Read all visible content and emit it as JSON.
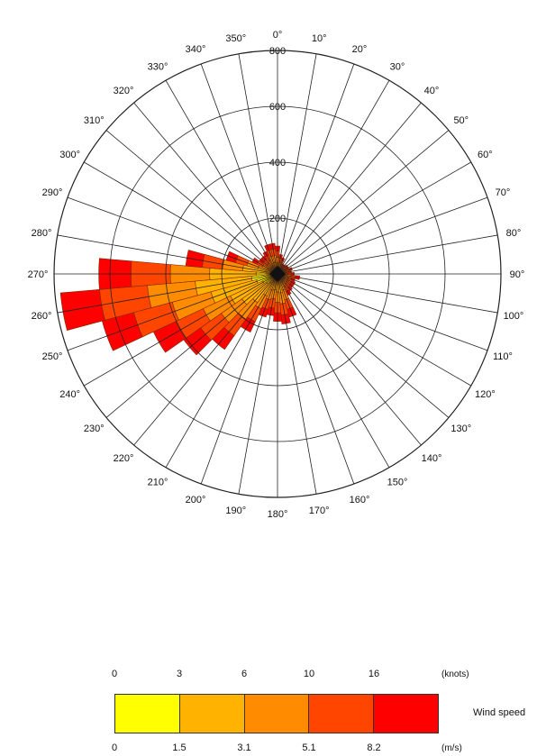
{
  "chart_data": {
    "type": "polar-bar",
    "ring_labels": [
      "200",
      "400",
      "600",
      "800"
    ],
    "r_max": 800,
    "direction_labels": [
      "0°",
      "10°",
      "20°",
      "30°",
      "40°",
      "50°",
      "60°",
      "70°",
      "80°",
      "90°",
      "100°",
      "110°",
      "120°",
      "130°",
      "140°",
      "150°",
      "160°",
      "170°",
      "180°",
      "190°",
      "200°",
      "210°",
      "220°",
      "230°",
      "240°",
      "250°",
      "260°",
      "270°",
      "280°",
      "290°",
      "300°",
      "310°",
      "320°",
      "330°",
      "340°",
      "350°"
    ],
    "sector_totals": [
      {
        "dir": 0,
        "value": 100
      },
      {
        "dir": 10,
        "value": 70
      },
      {
        "dir": 20,
        "value": 60
      },
      {
        "dir": 30,
        "value": 40
      },
      {
        "dir": 40,
        "value": 40
      },
      {
        "dir": 50,
        "value": 45
      },
      {
        "dir": 60,
        "value": 45
      },
      {
        "dir": 70,
        "value": 55
      },
      {
        "dir": 80,
        "value": 50
      },
      {
        "dir": 90,
        "value": 60
      },
      {
        "dir": 100,
        "value": 80
      },
      {
        "dir": 110,
        "value": 65
      },
      {
        "dir": 120,
        "value": 70
      },
      {
        "dir": 130,
        "value": 70
      },
      {
        "dir": 140,
        "value": 75
      },
      {
        "dir": 150,
        "value": 85
      },
      {
        "dir": 160,
        "value": 160
      },
      {
        "dir": 170,
        "value": 180
      },
      {
        "dir": 180,
        "value": 170
      },
      {
        "dir": 190,
        "value": 150
      },
      {
        "dir": 200,
        "value": 160
      },
      {
        "dir": 210,
        "value": 230
      },
      {
        "dir": 220,
        "value": 330
      },
      {
        "dir": 230,
        "value": 410
      },
      {
        "dir": 240,
        "value": 490
      },
      {
        "dir": 250,
        "value": 650
      },
      {
        "dir": 260,
        "value": 780
      },
      {
        "dir": 270,
        "value": 640
      },
      {
        "dir": 280,
        "value": 330
      },
      {
        "dir": 290,
        "value": 190
      },
      {
        "dir": 300,
        "value": 100
      },
      {
        "dir": 310,
        "value": 80
      },
      {
        "dir": 320,
        "value": 80
      },
      {
        "dir": 330,
        "value": 90
      },
      {
        "dir": 340,
        "value": 110
      },
      {
        "dir": 350,
        "value": 110
      }
    ],
    "legend": {
      "title": "Wind speed",
      "knots_label": "(knots)",
      "ms_label": "(m/s)",
      "knots_ticks": [
        "0",
        "3",
        "6",
        "10",
        "16"
      ],
      "ms_ticks": [
        "0",
        "1.5",
        "3.1",
        "5.1",
        "8.2"
      ],
      "colors": [
        "#ffff00",
        "#ffb200",
        "#ff8c00",
        "#ff4500",
        "#ff0000"
      ]
    }
  }
}
